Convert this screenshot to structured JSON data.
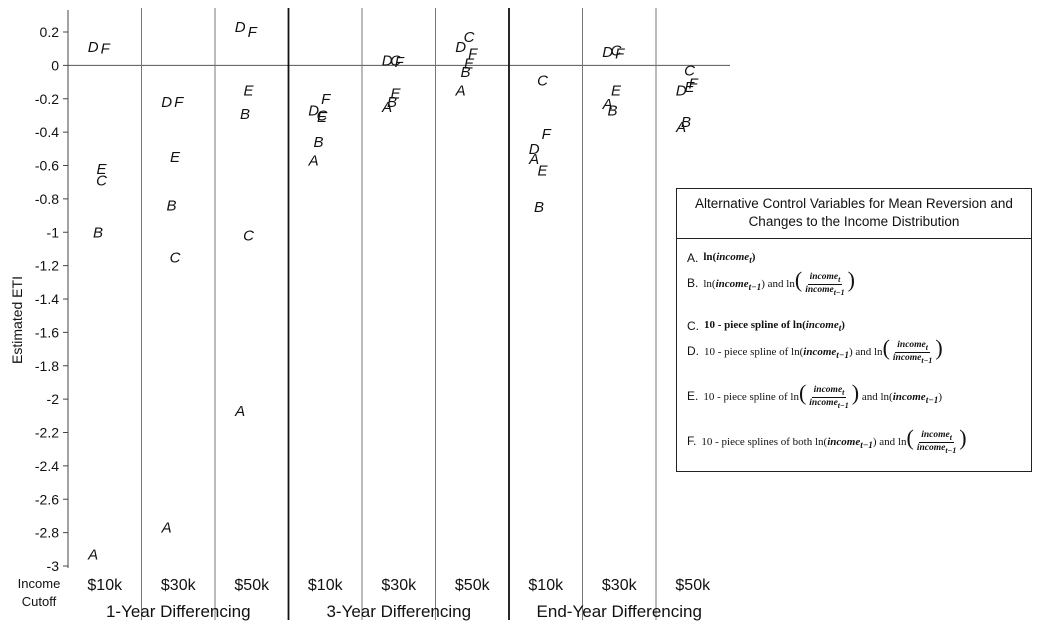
{
  "chart_data": {
    "type": "scatter",
    "title": "",
    "ylabel": "Estimated ETI",
    "ylim": [
      -3,
      0.2
    ],
    "yticks": [
      "0.2",
      "0",
      "-0.2",
      "-0.4",
      "-0.6",
      "-0.8",
      "-1",
      "-1.2",
      "-1.4",
      "-1.6",
      "-1.8",
      "-2",
      "-2.2",
      "-2.4",
      "-2.6",
      "-2.8",
      "-3"
    ],
    "x_axis_caption": [
      "Income",
      "Cutoff"
    ],
    "groups": [
      "1-Year Differencing",
      "3-Year Differencing",
      "End-Year Differencing"
    ],
    "cutoffs": [
      "$10k",
      "$30k",
      "$50k"
    ],
    "categories": [
      "1-Year $10k",
      "1-Year $30k",
      "1-Year $50k",
      "3-Year $10k",
      "3-Year $30k",
      "3-Year $50k",
      "End-Year $10k",
      "End-Year $30k",
      "End-Year $50k"
    ],
    "series": [
      {
        "name": "A",
        "values": [
          -2.93,
          -2.77,
          -2.07,
          -0.57,
          -0.25,
          -0.15,
          -0.56,
          -0.23,
          -0.37
        ]
      },
      {
        "name": "B",
        "values": [
          -1.0,
          -0.84,
          -0.29,
          -0.46,
          -0.22,
          -0.04,
          -0.85,
          -0.27,
          -0.34
        ]
      },
      {
        "name": "C",
        "values": [
          -0.69,
          -1.15,
          -1.02,
          -0.3,
          0.03,
          0.17,
          -0.09,
          0.09,
          -0.03
        ]
      },
      {
        "name": "D",
        "values": [
          0.11,
          -0.22,
          0.23,
          -0.27,
          0.03,
          0.11,
          -0.5,
          0.08,
          -0.15
        ]
      },
      {
        "name": "E",
        "values": [
          -0.62,
          -0.55,
          -0.15,
          -0.31,
          -0.17,
          0.01,
          -0.63,
          -0.15,
          -0.13
        ]
      },
      {
        "name": "F",
        "values": [
          0.1,
          -0.22,
          0.2,
          -0.2,
          0.02,
          0.07,
          -0.41,
          0.07,
          -0.11
        ]
      }
    ],
    "grid": {
      "horizontal": false,
      "vertical": true
    },
    "legend_placement": "right"
  },
  "legend": {
    "title": "Alternative Control Variables for Mean Reversion and Changes to the Income Distribution",
    "items": [
      {
        "key": "A.",
        "text": "ln(income_t)"
      },
      {
        "key": "B.",
        "text": "ln(income_t-1) and ln(income_t / income_t-1)"
      },
      {
        "key": "C.",
        "text": "10 - piece spline of ln(income_t)"
      },
      {
        "key": "D.",
        "text": "10 - piece spline of ln(income_t-1) and ln(income_t / income_t-1)"
      },
      {
        "key": "E.",
        "text": "10 - piece spline of ln(income_t / income_t-1) and ln(income_t-1)"
      },
      {
        "key": "F.",
        "text": "10 - piece splines of both ln(income_t-1) and ln(income_t / income_t-1)"
      }
    ]
  }
}
